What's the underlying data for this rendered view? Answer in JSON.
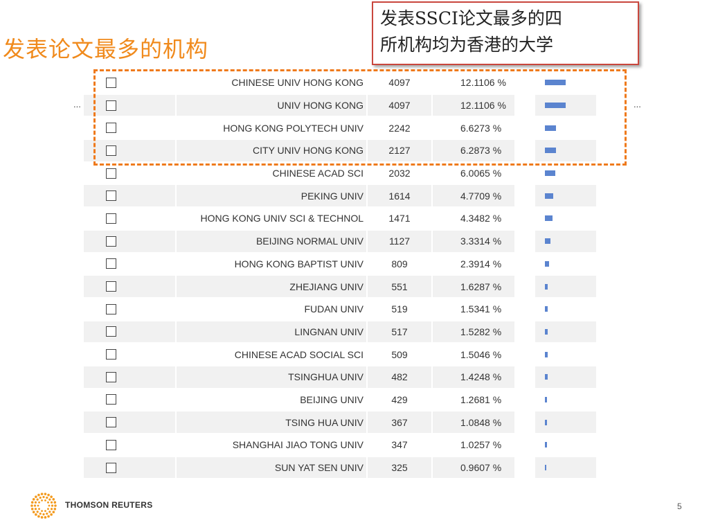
{
  "title": "发表论文最多的机构",
  "callout": {
    "line1": "发表SSCI论文最多的四",
    "line2": "所机构均为香港的大学"
  },
  "ellipsis_left": "...",
  "ellipsis_right": "...",
  "table": {
    "rows": [
      {
        "name": "CHINESE UNIV HONG KONG",
        "count": "4097",
        "percent": "12.1106 %",
        "share": 0.121106
      },
      {
        "name": "UNIV HONG KONG",
        "count": "4097",
        "percent": "12.1106 %",
        "share": 0.121106
      },
      {
        "name": "HONG KONG POLYTECH UNIV",
        "count": "2242",
        "percent": "6.6273 %",
        "share": 0.066273
      },
      {
        "name": "CITY UNIV HONG KONG",
        "count": "2127",
        "percent": "6.2873 %",
        "share": 0.062873
      },
      {
        "name": "CHINESE ACAD SCI",
        "count": "2032",
        "percent": "6.0065 %",
        "share": 0.060065
      },
      {
        "name": "PEKING UNIV",
        "count": "1614",
        "percent": "4.7709 %",
        "share": 0.047709
      },
      {
        "name": "HONG KONG UNIV SCI & TECHNOL",
        "count": "1471",
        "percent": "4.3482 %",
        "share": 0.043482
      },
      {
        "name": "BEIJING NORMAL UNIV",
        "count": "1127",
        "percent": "3.3314 %",
        "share": 0.033314
      },
      {
        "name": "HONG KONG BAPTIST UNIV",
        "count": "809",
        "percent": "2.3914 %",
        "share": 0.023914
      },
      {
        "name": "ZHEJIANG UNIV",
        "count": "551",
        "percent": "1.6287 %",
        "share": 0.016287
      },
      {
        "name": "FUDAN UNIV",
        "count": "519",
        "percent": "1.5341 %",
        "share": 0.015341
      },
      {
        "name": "LINGNAN UNIV",
        "count": "517",
        "percent": "1.5282 %",
        "share": 0.015282
      },
      {
        "name": "CHINESE ACAD SOCIAL SCI",
        "count": "509",
        "percent": "1.5046 %",
        "share": 0.015046
      },
      {
        "name": "TSINGHUA UNIV",
        "count": "482",
        "percent": "1.4248 %",
        "share": 0.014248
      },
      {
        "name": "BEIJING UNIV",
        "count": "429",
        "percent": "1.2681 %",
        "share": 0.012681
      },
      {
        "name": "TSING HUA UNIV",
        "count": "367",
        "percent": "1.0848 %",
        "share": 0.010848
      },
      {
        "name": "SHANGHAI JIAO TONG UNIV",
        "count": "347",
        "percent": "1.0257 %",
        "share": 0.010257
      },
      {
        "name": "SUN YAT SEN UNIV",
        "count": "325",
        "percent": "0.9607 %",
        "share": 0.009607
      }
    ]
  },
  "footer": {
    "brand": "THOMSON REUTERS",
    "page_number": "5"
  },
  "colors": {
    "title": "#f08a1c",
    "highlight_border": "#ef7a1c",
    "callout_border": "#c9463d",
    "bar": "#5b84cf",
    "row_alt": "#f1f1f1"
  }
}
